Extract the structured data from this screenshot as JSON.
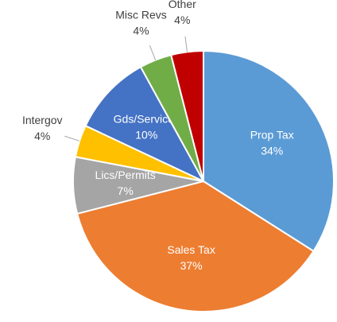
{
  "chart_data": {
    "type": "pie",
    "categories": [
      "Prop Tax",
      "Sales Tax",
      "Lics/Permits",
      "Intergov",
      "Gds/Services",
      "Misc Revs",
      "Other"
    ],
    "values": [
      34,
      37,
      7,
      4,
      10,
      4,
      4
    ],
    "value_labels": [
      "34%",
      "37%",
      "7%",
      "4%",
      "10%",
      "4%",
      "4%"
    ],
    "colors": [
      "#5b9bd5",
      "#ed7d31",
      "#a5a5a5",
      "#ffc000",
      "#4472c4",
      "#70ad47",
      "#c00000"
    ]
  }
}
